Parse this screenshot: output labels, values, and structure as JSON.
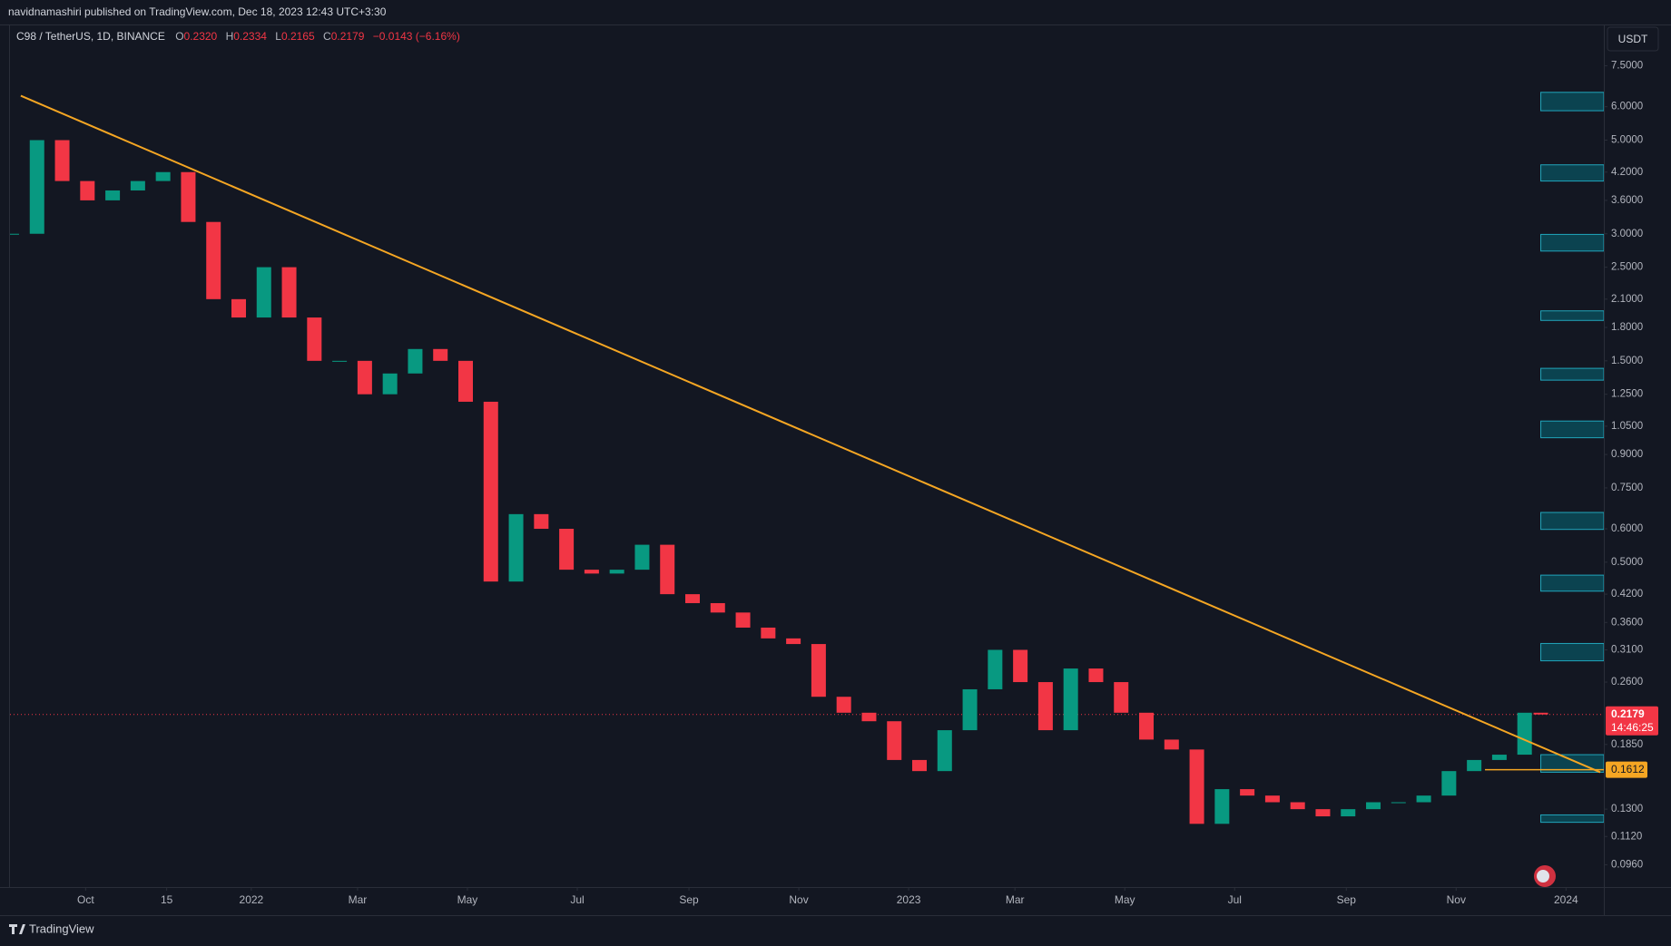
{
  "chart_data": {
    "type": "candlestick",
    "published": "navidnamashiri published on TradingView.com, Dec 18, 2023 12:43 UTC+3:30",
    "title": "C98 / TetherUS, 1D, BINANCE",
    "ohlc": [
      {
        "key": "O",
        "text": "0.2320"
      },
      {
        "key": "H",
        "text": "0.2334"
      },
      {
        "key": "L",
        "text": "0.2165"
      },
      {
        "key": "C",
        "text": "0.2179"
      }
    ],
    "change": "−0.0143 (−6.16%)",
    "currency": "USDT",
    "brand": "TradingView",
    "countdown": "14:46:25",
    "log_scale": true,
    "up_color": "#089981",
    "down_color": "#f23645",
    "x": [
      0,
      14,
      28,
      42,
      56,
      70,
      84,
      98,
      112,
      126,
      140,
      154,
      168,
      182,
      196,
      210,
      224,
      238,
      252,
      266,
      280,
      294,
      308,
      322,
      336,
      350,
      364,
      378,
      392,
      406,
      420,
      434,
      448,
      462,
      476,
      490,
      504,
      518,
      532,
      546,
      560,
      574,
      588,
      602,
      616,
      630,
      644,
      658,
      672,
      686,
      700,
      714,
      728,
      742,
      756,
      770,
      784,
      798,
      812,
      826,
      840,
      849
    ],
    "values": [
      3.0,
      5.0,
      4.0,
      3.6,
      3.8,
      4.0,
      4.2,
      3.2,
      2.1,
      1.9,
      2.5,
      1.9,
      1.5,
      1.5,
      1.25,
      1.4,
      1.6,
      1.5,
      1.2,
      0.45,
      0.65,
      0.6,
      0.48,
      0.47,
      0.48,
      0.55,
      0.42,
      0.4,
      0.38,
      0.35,
      0.33,
      0.32,
      0.24,
      0.22,
      0.21,
      0.17,
      0.16,
      0.2,
      0.25,
      0.31,
      0.26,
      0.2,
      0.28,
      0.26,
      0.22,
      0.19,
      0.18,
      0.12,
      0.145,
      0.14,
      0.135,
      0.13,
      0.125,
      0.13,
      0.135,
      0.135,
      0.14,
      0.16,
      0.17,
      0.175,
      0.22,
      0.2179
    ],
    "xlim": [
      -1,
      884
    ],
    "xticks": [
      {
        "value": 41,
        "label": "Oct"
      },
      {
        "value": 86,
        "label": "15"
      },
      {
        "value": 133,
        "label": "2022"
      },
      {
        "value": 192,
        "label": "Mar"
      },
      {
        "value": 253,
        "label": "May"
      },
      {
        "value": 314,
        "label": "Jul"
      },
      {
        "value": 376,
        "label": "Sep"
      },
      {
        "value": 437,
        "label": "Nov"
      },
      {
        "value": 498,
        "label": "2023"
      },
      {
        "value": 557,
        "label": "Mar"
      },
      {
        "value": 618,
        "label": "May"
      },
      {
        "value": 679,
        "label": "Jul"
      },
      {
        "value": 741,
        "label": "Sep"
      },
      {
        "value": 802,
        "label": "Nov"
      },
      {
        "value": 863,
        "label": "2024"
      }
    ],
    "ylim": [
      0.085,
      9.35
    ],
    "yticks": [
      {
        "value": 7.5,
        "label": "7.5000"
      },
      {
        "value": 6,
        "label": "6.0000"
      },
      {
        "value": 5,
        "label": "5.0000"
      },
      {
        "value": 4.2,
        "label": "4.2000"
      },
      {
        "value": 3.6,
        "label": "3.6000"
      },
      {
        "value": 3,
        "label": "3.0000"
      },
      {
        "value": 2.5,
        "label": "2.5000"
      },
      {
        "value": 2.1,
        "label": "2.1000"
      },
      {
        "value": 1.8,
        "label": "1.8000"
      },
      {
        "value": 1.5,
        "label": "1.5000"
      },
      {
        "value": 1.25,
        "label": "1.2500"
      },
      {
        "value": 1.05,
        "label": "1.0500"
      },
      {
        "value": 0.9,
        "label": "0.9000"
      },
      {
        "value": 0.75,
        "label": "0.7500"
      },
      {
        "value": 0.6,
        "label": "0.6000"
      },
      {
        "value": 0.5,
        "label": "0.5000"
      },
      {
        "value": 0.42,
        "label": "0.4200"
      },
      {
        "value": 0.36,
        "label": "0.3600"
      },
      {
        "value": 0.31,
        "label": "0.3100"
      },
      {
        "value": 0.26,
        "label": "0.2600"
      },
      {
        "value": 0.185,
        "label": "0.1850"
      },
      {
        "value": 0.13,
        "label": "0.1300"
      },
      {
        "value": 0.112,
        "label": "0.1120"
      },
      {
        "value": 0.096,
        "label": "0.0960"
      }
    ],
    "last_price": {
      "value": 0.2179,
      "label": "0.2179"
    },
    "level": {
      "value": 0.1612,
      "label": "0.1612",
      "start": 818
    },
    "trendline": [
      [
        5,
        6.37
      ],
      [
        882,
        0.159
      ]
    ],
    "trendline_color": "#f5a623",
    "zone_start": 849,
    "zones": [
      [
        6.49,
        5.87
      ],
      [
        4.37,
        4.0
      ],
      [
        2.99,
        2.73
      ],
      [
        1.97,
        1.87
      ],
      [
        1.44,
        1.35
      ],
      [
        1.08,
        0.986
      ],
      [
        0.656,
        0.598
      ],
      [
        0.466,
        0.427
      ],
      [
        0.321,
        0.292
      ],
      [
        0.175,
        0.159
      ],
      [
        0.126,
        0.121
      ]
    ]
  }
}
